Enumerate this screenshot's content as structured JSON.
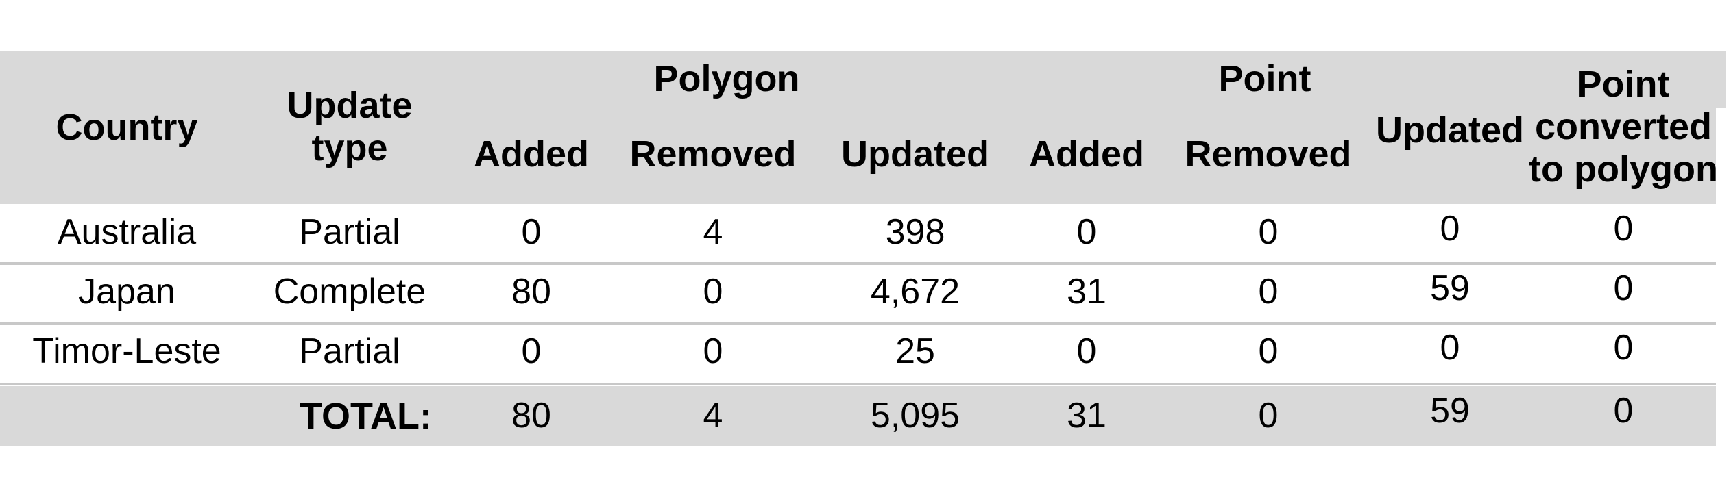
{
  "table": {
    "headers": {
      "country": "Country",
      "update_type": [
        "Update",
        "type"
      ],
      "group_polygon": "Polygon",
      "group_point": "Point",
      "polygon_added": "Added",
      "polygon_removed": "Removed",
      "polygon_updated": "Updated",
      "point_added": "Added",
      "point_removed": "Removed",
      "point_updated": "Updated",
      "point_converted": [
        "Point",
        "converted",
        "to polygon"
      ]
    },
    "rows": [
      {
        "country": "Australia",
        "update_type": "Partial",
        "cells": [
          "0",
          "4",
          "398",
          "0",
          "0",
          "0",
          "0"
        ]
      },
      {
        "country": "Japan",
        "update_type": "Complete",
        "cells": [
          "80",
          "0",
          "4,672",
          "31",
          "0",
          "59",
          "0"
        ]
      },
      {
        "country": "Timor-Leste",
        "update_type": "Partial",
        "cells": [
          "0",
          "0",
          "25",
          "0",
          "0",
          "0",
          "0"
        ]
      }
    ],
    "total": {
      "label": "TOTAL:",
      "cells": [
        "80",
        "4",
        "5,095",
        "31",
        "0",
        "59",
        "0"
      ]
    }
  }
}
